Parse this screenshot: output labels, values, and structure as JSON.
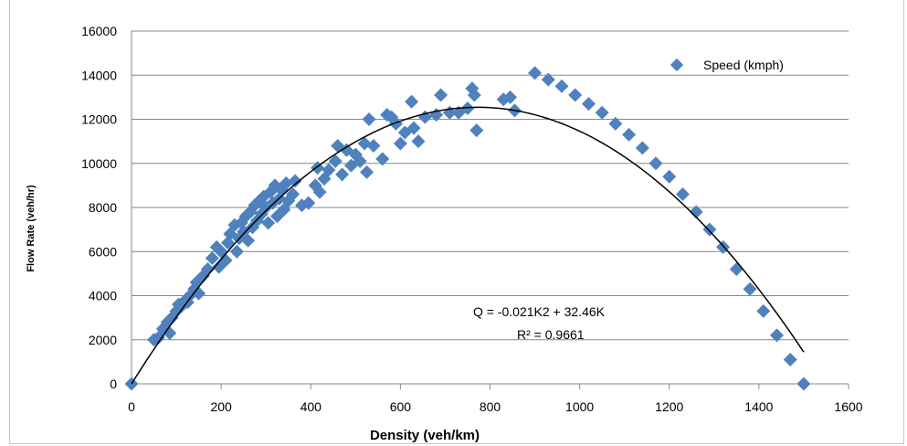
{
  "chart_data": {
    "type": "scatter",
    "title": "",
    "xlabel": "Density (veh/km)",
    "ylabel": "Flow Rate (veh/hr)",
    "xlim": [
      0,
      1600
    ],
    "ylim": [
      0,
      16000
    ],
    "x_ticks": [
      "0",
      "200",
      "400",
      "600",
      "800",
      "1000",
      "1200",
      "1400",
      "1600"
    ],
    "y_ticks": [
      "0",
      "2000",
      "4000",
      "6000",
      "8000",
      "10000",
      "12000",
      "14000",
      "16000"
    ],
    "grid": "horizontal",
    "legend_position": "top-right",
    "marker_color": "#4F81BD",
    "trendline_color": "#000000",
    "series": [
      {
        "name": "Speed (kmph)",
        "points": [
          [
            0,
            0
          ],
          [
            50,
            2000
          ],
          [
            60,
            2100
          ],
          [
            70,
            2500
          ],
          [
            80,
            2800
          ],
          [
            85,
            2300
          ],
          [
            90,
            3000
          ],
          [
            100,
            3300
          ],
          [
            105,
            3600
          ],
          [
            110,
            3500
          ],
          [
            120,
            3800
          ],
          [
            125,
            3700
          ],
          [
            130,
            4000
          ],
          [
            140,
            4300
          ],
          [
            145,
            4600
          ],
          [
            150,
            4100
          ],
          [
            160,
            4900
          ],
          [
            170,
            5200
          ],
          [
            180,
            5700
          ],
          [
            190,
            6200
          ],
          [
            195,
            5300
          ],
          [
            200,
            6000
          ],
          [
            210,
            5600
          ],
          [
            215,
            6400
          ],
          [
            220,
            6800
          ],
          [
            230,
            7200
          ],
          [
            235,
            6000
          ],
          [
            240,
            6600
          ],
          [
            245,
            7300
          ],
          [
            250,
            6900
          ],
          [
            255,
            7600
          ],
          [
            260,
            6500
          ],
          [
            265,
            7800
          ],
          [
            270,
            7100
          ],
          [
            275,
            8100
          ],
          [
            280,
            7400
          ],
          [
            285,
            8300
          ],
          [
            290,
            7700
          ],
          [
            295,
            8500
          ],
          [
            300,
            8000
          ],
          [
            305,
            7300
          ],
          [
            310,
            8700
          ],
          [
            315,
            8200
          ],
          [
            320,
            9000
          ],
          [
            325,
            7600
          ],
          [
            330,
            8400
          ],
          [
            335,
            8800
          ],
          [
            340,
            7900
          ],
          [
            345,
            9100
          ],
          [
            350,
            8300
          ],
          [
            360,
            8600
          ],
          [
            365,
            9200
          ],
          [
            380,
            8100
          ],
          [
            395,
            8200
          ],
          [
            410,
            9000
          ],
          [
            415,
            9800
          ],
          [
            420,
            8700
          ],
          [
            430,
            9300
          ],
          [
            440,
            9700
          ],
          [
            455,
            10100
          ],
          [
            460,
            10800
          ],
          [
            470,
            9500
          ],
          [
            480,
            10600
          ],
          [
            490,
            9900
          ],
          [
            500,
            10400
          ],
          [
            510,
            10100
          ],
          [
            520,
            10900
          ],
          [
            525,
            9600
          ],
          [
            530,
            12000
          ],
          [
            540,
            10800
          ],
          [
            560,
            10200
          ],
          [
            570,
            12200
          ],
          [
            580,
            12100
          ],
          [
            590,
            11800
          ],
          [
            600,
            10900
          ],
          [
            610,
            11400
          ],
          [
            625,
            12800
          ],
          [
            630,
            11600
          ],
          [
            640,
            11000
          ],
          [
            655,
            12100
          ],
          [
            680,
            12200
          ],
          [
            690,
            13100
          ],
          [
            710,
            12300
          ],
          [
            730,
            12300
          ],
          [
            750,
            12500
          ],
          [
            760,
            13400
          ],
          [
            765,
            13100
          ],
          [
            770,
            11500
          ],
          [
            830,
            12900
          ],
          [
            845,
            13000
          ],
          [
            855,
            12400
          ],
          [
            900,
            14100
          ],
          [
            930,
            13800
          ],
          [
            960,
            13500
          ],
          [
            990,
            13100
          ],
          [
            1020,
            12700
          ],
          [
            1050,
            12300
          ],
          [
            1080,
            11800
          ],
          [
            1110,
            11300
          ],
          [
            1140,
            10700
          ],
          [
            1170,
            10000
          ],
          [
            1200,
            9400
          ],
          [
            1230,
            8600
          ],
          [
            1260,
            7800
          ],
          [
            1290,
            7000
          ],
          [
            1320,
            6200
          ],
          [
            1350,
            5200
          ],
          [
            1380,
            4300
          ],
          [
            1410,
            3300
          ],
          [
            1440,
            2200
          ],
          [
            1470,
            1100
          ],
          [
            1500,
            0
          ]
        ]
      }
    ],
    "trendline": {
      "equation": "Q = -0.021K2 + 32.46K",
      "r_squared": "R² = 0.9661",
      "a": -0.021,
      "b": 32.46,
      "x_range": [
        0,
        1500
      ]
    }
  }
}
